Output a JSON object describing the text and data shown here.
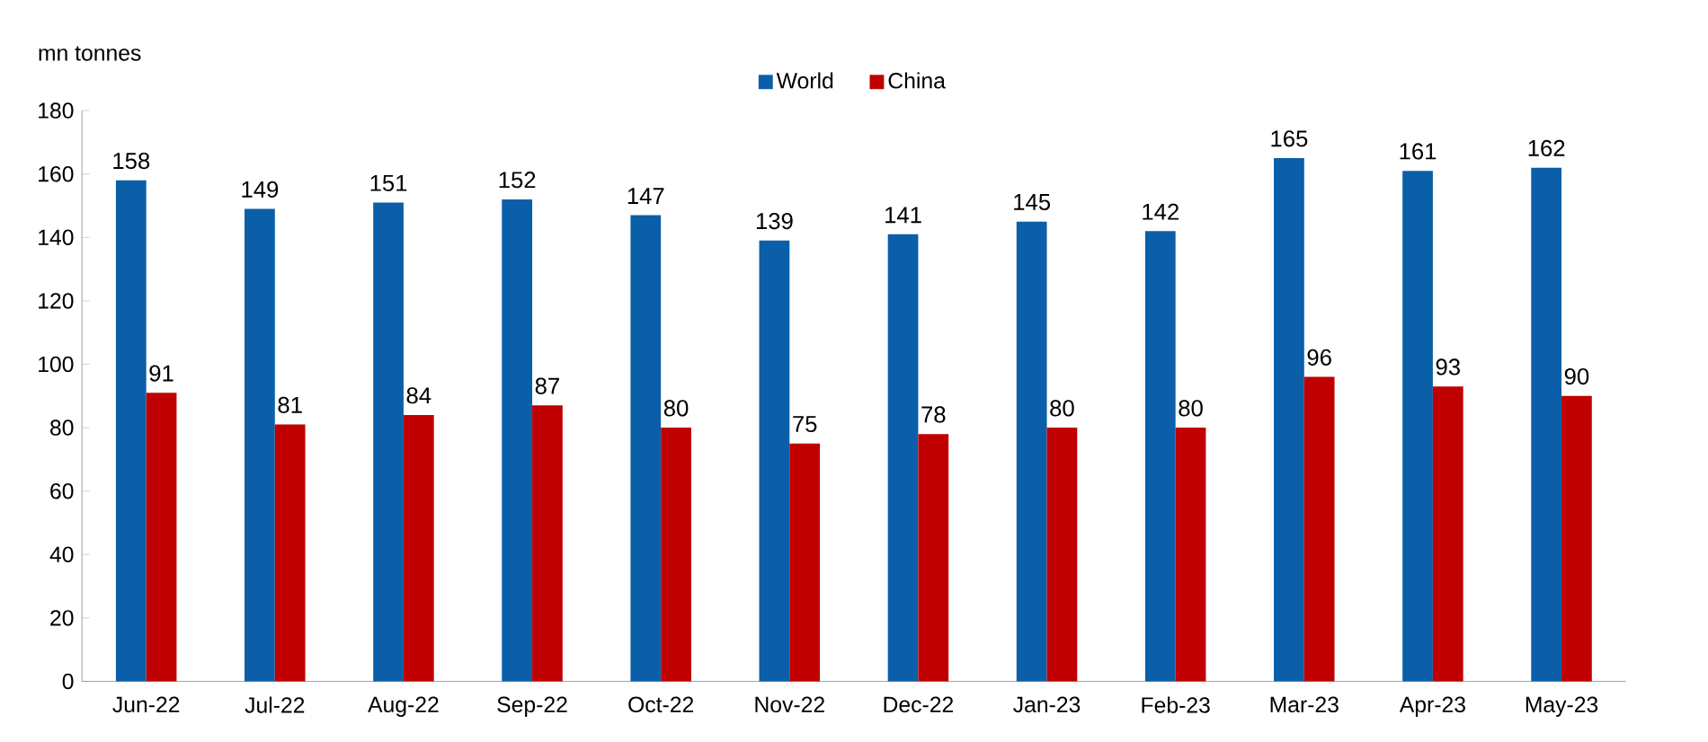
{
  "chart_data": {
    "type": "bar",
    "ylabel": "mn tonnes",
    "categories": [
      "Jun-22",
      "Jul-22",
      "Aug-22",
      "Sep-22",
      "Oct-22",
      "Nov-22",
      "Dec-22",
      "Jan-23",
      "Feb-23",
      "Mar-23",
      "Apr-23",
      "May-23"
    ],
    "series": [
      {
        "name": "World",
        "color": "#0a5fa8",
        "values": [
          158,
          149,
          151,
          152,
          147,
          139,
          141,
          145,
          142,
          165,
          161,
          162
        ]
      },
      {
        "name": "China",
        "color": "#c00000",
        "values": [
          91,
          81,
          84,
          87,
          80,
          75,
          78,
          80,
          80,
          96,
          93,
          90
        ]
      }
    ],
    "ylim": [
      0,
      180
    ],
    "yticks": [
      0,
      20,
      40,
      60,
      80,
      100,
      120,
      140,
      160,
      180
    ],
    "data_labels": true,
    "legend": "top",
    "grid": false
  }
}
